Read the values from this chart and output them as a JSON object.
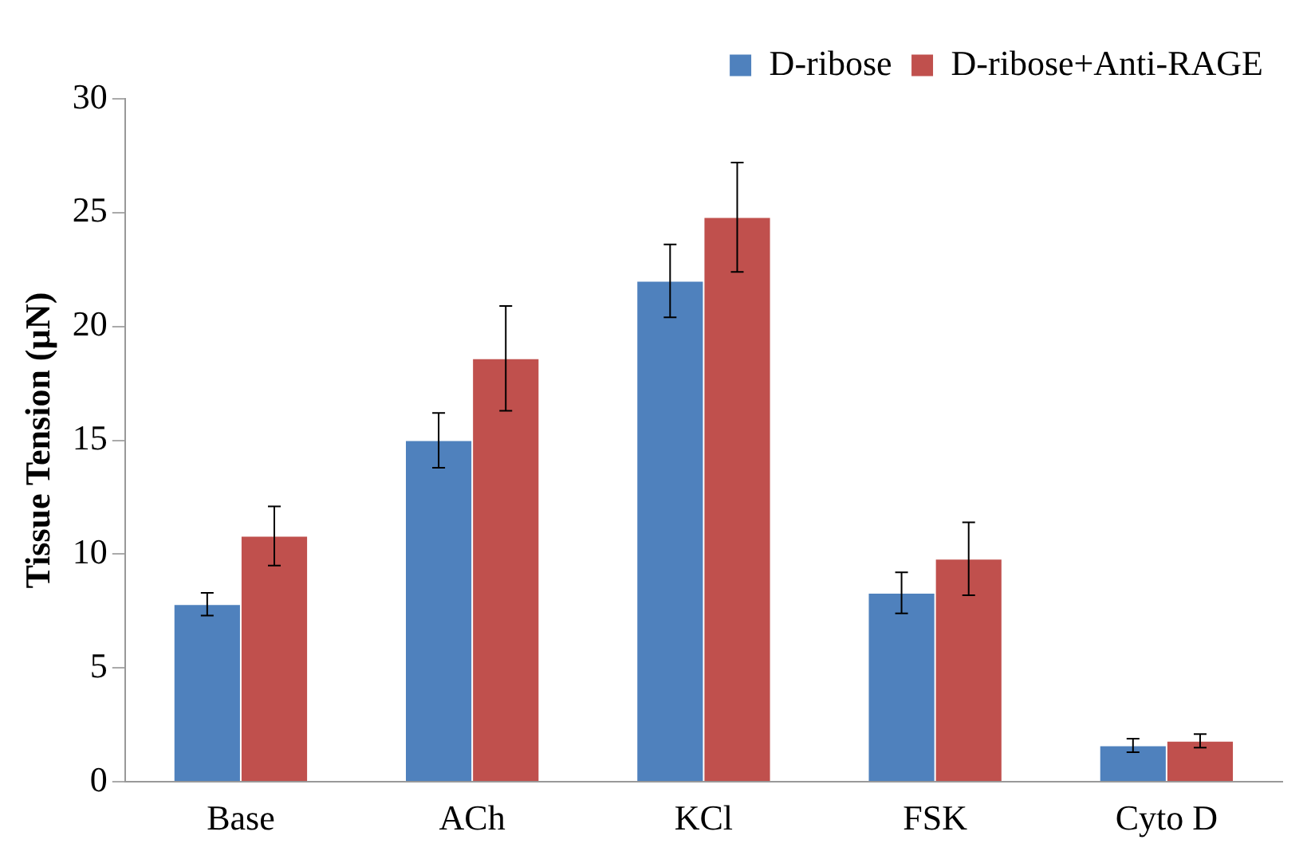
{
  "chart_data": {
    "type": "bar",
    "ylabel": "Tissue Tension (µN)",
    "categories": [
      "Base",
      "ACh",
      "KCl",
      "FSK",
      "Cyto D"
    ],
    "series": [
      {
        "name": "D-ribose",
        "color": "#4f81bd",
        "values": [
          7.8,
          15.0,
          22.0,
          8.3,
          1.6
        ],
        "errors": [
          0.5,
          1.2,
          1.6,
          0.9,
          0.3
        ]
      },
      {
        "name": "D-ribose+Anti-RAGE",
        "color": "#c0504d",
        "values": [
          10.8,
          18.6,
          24.8,
          9.8,
          1.8
        ],
        "errors": [
          1.3,
          2.3,
          2.4,
          1.6,
          0.3
        ]
      }
    ],
    "ylim": [
      0,
      30
    ],
    "yticks": [
      0,
      5,
      10,
      15,
      20,
      25,
      30
    ],
    "grid": false,
    "legend": "top right"
  }
}
